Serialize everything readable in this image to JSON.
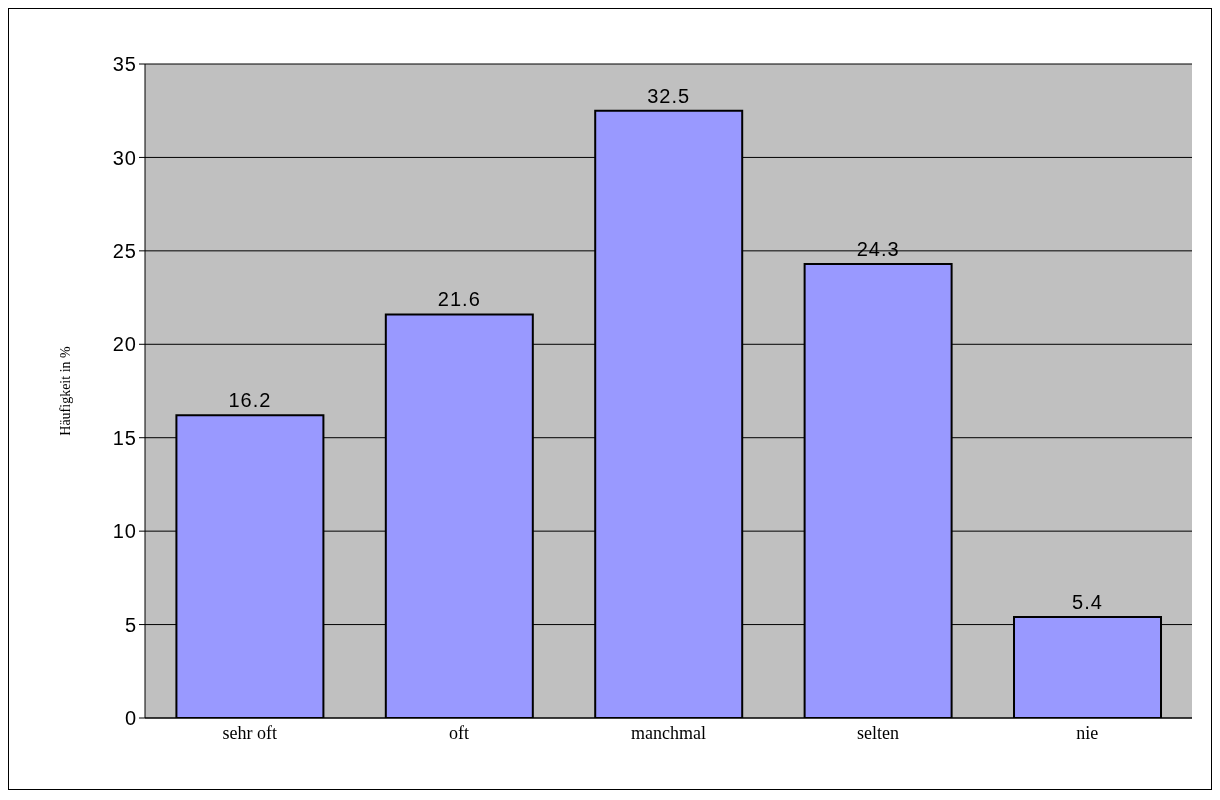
{
  "chart_data": {
    "type": "bar",
    "ylabel": "Häufigkeit in %",
    "categories": [
      "sehr oft",
      "oft",
      "manchmal",
      "selten",
      "nie"
    ],
    "values": [
      16.2,
      21.6,
      32.5,
      24.3,
      5.4
    ],
    "color": "#9999ff",
    "ylim": [
      0,
      35
    ],
    "yticks": [
      0,
      5,
      10,
      15,
      20,
      25,
      30,
      35
    ],
    "grid": "y",
    "data_labels": true
  }
}
